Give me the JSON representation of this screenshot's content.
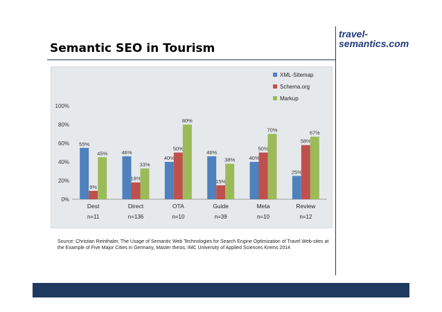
{
  "slide": {
    "title": "Semantic SEO in Tourism",
    "logo_line1": "travel-",
    "logo_line2": "semantics.com",
    "source": "Source: Christian Reinthaler, The Usage of Semantic Web Technologies for Search Engine Optimization of Travel Web-sites at the Example of Five Major Cities in Germany, Master thesis, IMC University of Applied Sciences Krems 2014"
  },
  "colors": {
    "accent": "#1f3a5f",
    "logo": "#1f3a7a",
    "chart_background": "#e6e9ec"
  },
  "chart_data": {
    "type": "bar",
    "title": "",
    "xlabel": "",
    "ylabel": "",
    "categories": [
      "Dest",
      "Direct",
      "OTA",
      "Guide",
      "Meta",
      "Review"
    ],
    "sample_sizes": [
      "n=11",
      "n=136",
      "n=10",
      "n=39",
      "n=10",
      "n=12"
    ],
    "ylim": [
      0,
      100
    ],
    "yticks": [
      0,
      20,
      40,
      60,
      80,
      100
    ],
    "ytick_labels": [
      "0%",
      "20%",
      "40%",
      "60%",
      "80%",
      "100%"
    ],
    "grid": false,
    "legend_position": "top-right",
    "series": [
      {
        "name": "XML-Sitemap",
        "color": "#4f81bd",
        "values": [
          55,
          46,
          40,
          46,
          40,
          25
        ],
        "labels": [
          "55%",
          "46%",
          "40%",
          "46%",
          "40%",
          "25%"
        ]
      },
      {
        "name": "Schema.org",
        "color": "#c0504d",
        "values": [
          9,
          18,
          50,
          15,
          50,
          58
        ],
        "labels": [
          "9%",
          "18%",
          "50%",
          "15%",
          "50%",
          "58%"
        ]
      },
      {
        "name": "Markup",
        "color": "#9bbb59",
        "values": [
          45,
          33,
          80,
          38,
          70,
          67
        ],
        "labels": [
          "45%",
          "33%",
          "80%",
          "38%",
          "70%",
          "67%"
        ]
      }
    ]
  }
}
